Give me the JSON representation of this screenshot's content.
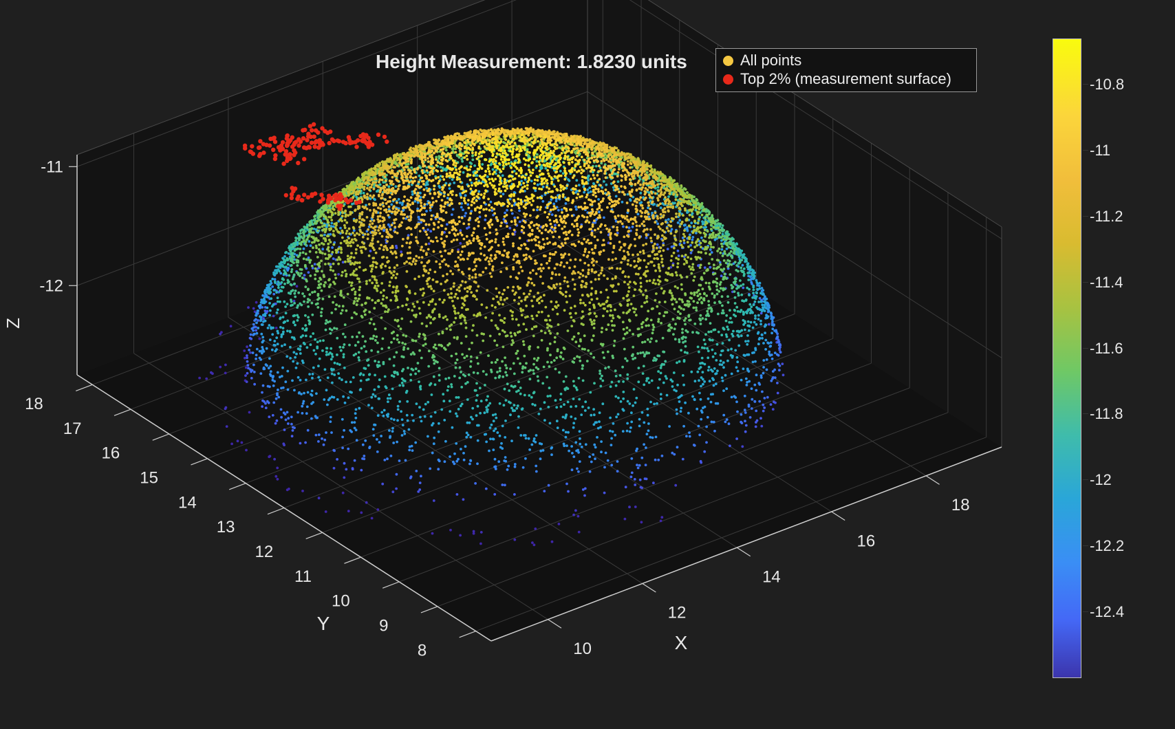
{
  "chart_data": {
    "type": "scatter",
    "subtype": "3d-scatter",
    "title": "Height Measurement: 1.8230 units",
    "xlabel": "X",
    "ylabel": "Y",
    "zlabel": "Z",
    "x_ticks": [
      "10",
      "12",
      "14",
      "16",
      "18"
    ],
    "y_ticks": [
      "8",
      "9",
      "10",
      "11",
      "12",
      "13",
      "14",
      "15",
      "16",
      "17",
      "18"
    ],
    "z_ticks": [
      "-12",
      "-11"
    ],
    "xlim": [
      8.8,
      19.6
    ],
    "ylim": [
      7.6,
      18.4
    ],
    "zlim": [
      -12.75,
      -10.9
    ],
    "legend_position": "top-right",
    "grid": true,
    "colormap": "parula",
    "colorbar": {
      "range": [
        -12.6,
        -10.66
      ],
      "ticks": [
        "-10.8",
        "-11",
        "-11.2",
        "-11.4",
        "-11.6",
        "-11.8",
        "-12",
        "-12.2",
        "-12.4"
      ]
    },
    "series": [
      {
        "name": "All points",
        "color": "#f5c842",
        "shape": "dome",
        "center": [
          14.0,
          13.4
        ],
        "radius": [
          4.5,
          4.3
        ],
        "base_z": -12.55,
        "peak_z": -10.74
      },
      {
        "name": "Top 2% (measurement surface)",
        "color": "#e8291a",
        "points": [
          [
            11.3,
            16.1,
            -10.75
          ],
          [
            11.5,
            16.3,
            -10.76
          ],
          [
            11.2,
            15.8,
            -10.75
          ],
          [
            11.7,
            16.0,
            -10.74
          ],
          [
            12.0,
            15.9,
            -10.76
          ],
          [
            12.4,
            15.6,
            -10.75
          ],
          [
            12.7,
            15.5,
            -10.76
          ],
          [
            12.1,
            16.3,
            -10.75
          ],
          [
            11.0,
            16.4,
            -10.76
          ],
          [
            10.9,
            14.6,
            -10.78
          ],
          [
            10.6,
            14.9,
            -10.78
          ],
          [
            11.1,
            14.3,
            -10.79
          ]
        ]
      }
    ]
  },
  "colors": {
    "background": "#1f1f1f",
    "axes": "#111111",
    "grid": "#3a3a3a",
    "axis_line": "#cfcfcf",
    "text": "#e8e8e8"
  }
}
